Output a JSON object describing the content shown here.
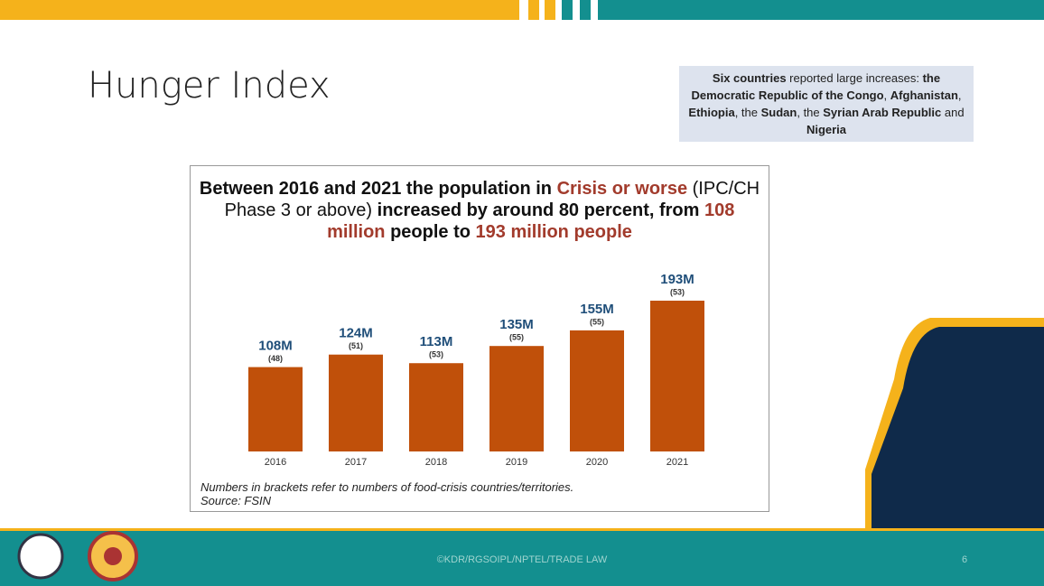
{
  "slide": {
    "title": "Hunger Index",
    "note": [
      {
        "text": "Six countries",
        "bold": true
      },
      {
        "text": " reported large increases: ",
        "bold": false
      },
      {
        "text": "the Democratic Republic of the Congo",
        "bold": true
      },
      {
        "text": ", ",
        "bold": false
      },
      {
        "text": "Afghanistan",
        "bold": true
      },
      {
        "text": ", ",
        "bold": false
      },
      {
        "text": "Ethiopia",
        "bold": true
      },
      {
        "text": ", the ",
        "bold": false
      },
      {
        "text": "Sudan",
        "bold": true
      },
      {
        "text": ", the ",
        "bold": false
      },
      {
        "text": "Syrian Arab Republic",
        "bold": true
      },
      {
        "text": " and ",
        "bold": false
      },
      {
        "text": "Nigeria",
        "bold": true
      }
    ],
    "footer": "©KDR/RGSOIPL/NPTEL/TRADE LAW",
    "page_number": "6"
  },
  "chart_data": {
    "type": "bar",
    "title_segments": [
      {
        "text": "Between 2016 and 2021 the population in ",
        "color": "#111111"
      },
      {
        "text": "Crisis or worse",
        "color": "#a23b2c"
      },
      {
        "text": " (IPC/CH Phase 3 or above) ",
        "color": "#111111",
        "light": true
      },
      {
        "text": "increased by around 80 percent, from ",
        "color": "#111111"
      },
      {
        "text": "108 million",
        "color": "#a23b2c"
      },
      {
        "text": " people to ",
        "color": "#111111"
      },
      {
        "text": "193 million people",
        "color": "#a23b2c"
      }
    ],
    "categories": [
      "2016",
      "2017",
      "2018",
      "2019",
      "2020",
      "2021"
    ],
    "values": [
      108,
      124,
      113,
      135,
      155,
      193
    ],
    "value_labels": [
      "108M",
      "124M",
      "113M",
      "135M",
      "155M",
      "193M"
    ],
    "counts": [
      48,
      51,
      53,
      55,
      55,
      53
    ],
    "count_labels": [
      "(48)",
      "(51)",
      "(53)",
      "(55)",
      "(55)",
      "(53)"
    ],
    "color": "#c0500a",
    "notes": [
      "Numbers in brackets refer to numbers of food-crisis countries/territories.",
      "Source: FSIN"
    ]
  }
}
